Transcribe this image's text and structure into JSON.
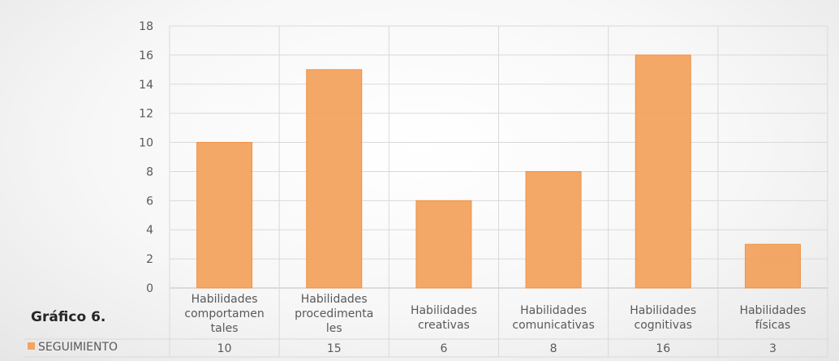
{
  "chart_data": {
    "type": "bar",
    "title": "Gráfico 6.",
    "categories": [
      [
        "Habilidades",
        "comportamen",
        "tales"
      ],
      [
        "Habilidades",
        "procedimenta",
        "les"
      ],
      [
        "Habilidades",
        "creativas"
      ],
      [
        "Habilidades",
        "comunicativas"
      ],
      [
        "Habilidades",
        "cognitivas"
      ],
      [
        "Habilidades",
        "físicas"
      ]
    ],
    "series": [
      {
        "name": "SEGUIMIENTO",
        "values": [
          10,
          15,
          6,
          8,
          16,
          3
        ],
        "color": "#f4a460"
      }
    ],
    "ylim": [
      0,
      18
    ],
    "yticks": [
      0,
      2,
      4,
      6,
      8,
      10,
      12,
      14,
      16,
      18
    ],
    "grid": true,
    "data_table": true,
    "legend": "bottom-left"
  }
}
